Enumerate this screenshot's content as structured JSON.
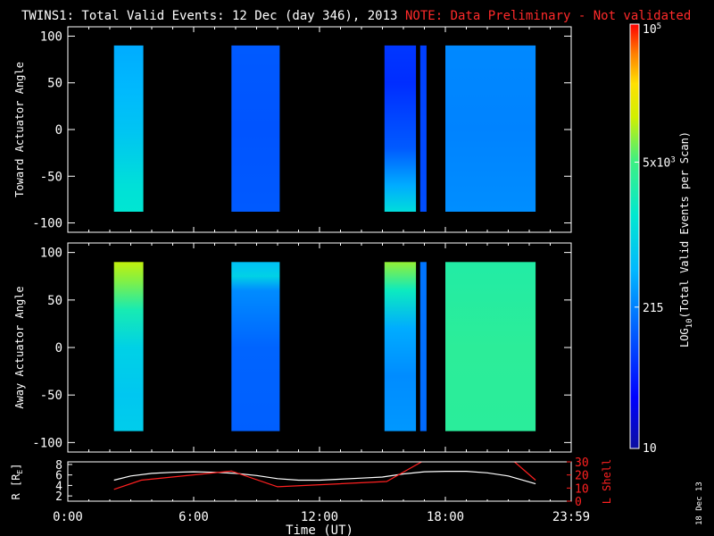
{
  "title": {
    "main": "TWINS1: Total Valid Events: 12 Dec (day 346), 2013",
    "note": "NOTE: Data Preliminary - Not validated",
    "note_color": "#ff2a2a"
  },
  "footer": {
    "stamp": "18 Dec 13"
  },
  "chart_data": [
    {
      "type": "heatmap",
      "name": "toward",
      "ylabel": "Toward Actuator Angle",
      "xlabel": "",
      "ylim": [
        -110,
        110
      ],
      "xlim": [
        0,
        24
      ],
      "yticks": [
        -100,
        -50,
        0,
        50,
        100
      ],
      "y_extent": [
        -88,
        90
      ],
      "blocks": [
        {
          "x": [
            2.2,
            3.6
          ],
          "profile": [
            {
              "y": -88,
              "level": 1500
            },
            {
              "y": -60,
              "level": 1300
            },
            {
              "y": -30,
              "level": 900
            },
            {
              "y": 0,
              "level": 650
            },
            {
              "y": 40,
              "level": 500
            },
            {
              "y": 90,
              "level": 400
            }
          ]
        },
        {
          "x": [
            7.8,
            10.1
          ],
          "profile": [
            {
              "y": -88,
              "level": 120
            },
            {
              "y": 0,
              "level": 110
            },
            {
              "y": 90,
              "level": 120
            }
          ]
        },
        {
          "x": [
            15.1,
            16.6
          ],
          "profile": [
            {
              "y": -88,
              "level": 1200
            },
            {
              "y": -60,
              "level": 400
            },
            {
              "y": -20,
              "level": 120
            },
            {
              "y": 50,
              "level": 60
            },
            {
              "y": 90,
              "level": 70
            }
          ]
        },
        {
          "x": [
            16.8,
            17.1
          ],
          "profile": [
            {
              "y": -88,
              "level": 100
            },
            {
              "y": 90,
              "level": 80
            }
          ]
        },
        {
          "x": [
            18.0,
            22.3
          ],
          "profile": [
            {
              "y": -88,
              "level": 260
            },
            {
              "y": 0,
              "level": 220
            },
            {
              "y": 90,
              "level": 240
            }
          ]
        }
      ]
    },
    {
      "type": "heatmap",
      "name": "away",
      "ylabel": "Away Actuator Angle",
      "xlabel": "",
      "ylim": [
        -110,
        110
      ],
      "xlim": [
        0,
        24
      ],
      "yticks": [
        -100,
        -50,
        0,
        50,
        100
      ],
      "y_extent": [
        -88,
        90
      ],
      "blocks": [
        {
          "x": [
            2.2,
            3.6
          ],
          "profile": [
            {
              "y": 90,
              "level": 12000
            },
            {
              "y": 70,
              "level": 8000
            },
            {
              "y": 40,
              "level": 2500
            },
            {
              "y": 0,
              "level": 900
            },
            {
              "y": -50,
              "level": 700
            },
            {
              "y": -88,
              "level": 800
            }
          ]
        },
        {
          "x": [
            7.8,
            10.1
          ],
          "profile": [
            {
              "y": 90,
              "level": 600
            },
            {
              "y": 75,
              "level": 900
            },
            {
              "y": 60,
              "level": 250
            },
            {
              "y": 0,
              "level": 140
            },
            {
              "y": -88,
              "level": 130
            }
          ]
        },
        {
          "x": [
            15.1,
            16.6
          ],
          "profile": [
            {
              "y": 90,
              "level": 9000
            },
            {
              "y": 60,
              "level": 2000
            },
            {
              "y": 20,
              "level": 400
            },
            {
              "y": -30,
              "level": 250
            },
            {
              "y": -88,
              "level": 300
            }
          ]
        },
        {
          "x": [
            16.8,
            17.1
          ],
          "profile": [
            {
              "y": -88,
              "level": 150
            },
            {
              "y": 90,
              "level": 180
            }
          ]
        },
        {
          "x": [
            18.0,
            22.3
          ],
          "profile": [
            {
              "y": -88,
              "level": 3500
            },
            {
              "y": 0,
              "level": 3600
            },
            {
              "y": 90,
              "level": 3000
            }
          ]
        }
      ]
    },
    {
      "type": "line",
      "name": "orbit",
      "xlabel": "Time (UT)",
      "ylabel_left": "R [R",
      "ylabel_left_sub": "E",
      "ylabel_left_close": "]",
      "ylabel_right": "L Shell",
      "xlim": [
        0,
        24
      ],
      "xticks": [
        {
          "x": 0,
          "label": "0:00"
        },
        {
          "x": 6,
          "label": "6:00"
        },
        {
          "x": 12,
          "label": "12:00"
        },
        {
          "x": 18,
          "label": "18:00"
        },
        {
          "x": 24,
          "label": "23:59"
        }
      ],
      "ylim_left": [
        1,
        8.5
      ],
      "yticks_left": [
        2,
        4,
        6,
        8
      ],
      "ylim_right": [
        0,
        30
      ],
      "yticks_right": [
        0,
        10,
        20,
        30
      ],
      "series": [
        {
          "axis": "left",
          "color": "#ffffff",
          "x": [
            2.2,
            3.0,
            4.0,
            5.0,
            6.0,
            7.0,
            8.0,
            9.0,
            10.0,
            11.0,
            12.0,
            13.0,
            14.0,
            15.0,
            16.0,
            17.0,
            18.0,
            19.0,
            20.0,
            21.0,
            22.3
          ],
          "y": [
            5.0,
            5.8,
            6.3,
            6.5,
            6.6,
            6.5,
            6.3,
            5.9,
            5.3,
            5.0,
            5.0,
            5.2,
            5.4,
            5.6,
            6.2,
            6.6,
            6.7,
            6.7,
            6.4,
            5.8,
            4.3
          ]
        },
        {
          "axis": "right",
          "color": "#ff2020",
          "x": [
            2.2,
            3.5,
            7.8,
            10.0,
            15.2,
            17.2,
            21.3,
            22.3
          ],
          "y": [
            9,
            16,
            23,
            11,
            15,
            33,
            30,
            16
          ]
        }
      ]
    }
  ],
  "colorbar": {
    "label": "LOG",
    "label_sub": "10",
    "label_rest": "(Total Valid Events per Scan)",
    "min": 10,
    "max": 100000,
    "ticks": [
      {
        "value": 10,
        "label": "10"
      },
      {
        "value": 215,
        "label": "215"
      },
      {
        "value": 5000,
        "label": "5x10",
        "sup": "3"
      },
      {
        "value": 100000,
        "label": "10",
        "sup": "5"
      }
    ]
  }
}
